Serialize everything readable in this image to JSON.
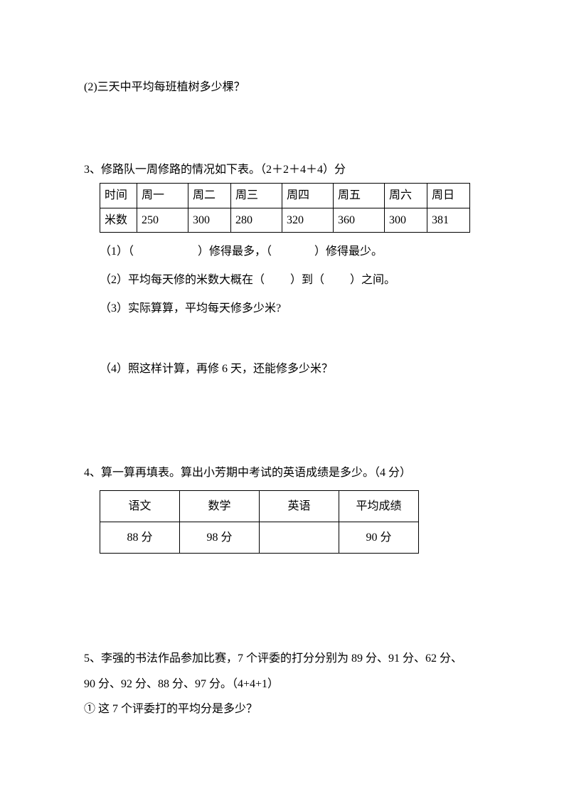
{
  "q2": {
    "text": "(2)三天中平均每班植树多少棵？"
  },
  "q3": {
    "title": "3、修路队一周修路的情况如下表。（2＋2＋4＋4）分",
    "table": {
      "row1": [
        "时间",
        "周一",
        "周二",
        "周三",
        "周四",
        "周五",
        "周六",
        "周日"
      ],
      "row2": [
        "米数",
        "250",
        "300",
        "280",
        "320",
        "360",
        "300",
        "381"
      ]
    },
    "sub1a": "（1）（",
    "sub1b": "）修得最多，（",
    "sub1c": "）修得最少。",
    "sub2a": "（2）平均每天修的米数大概在（",
    "sub2b": "）到（",
    "sub2c": "）之间。",
    "sub3": "（3）实际算算，平均每天修多少米?",
    "sub4": "（4）照这样计算，再修 6 天，还能修多少米？"
  },
  "q4": {
    "title": "4、算一算再填表。算出小芳期中考试的英语成绩是多少。（4 分）",
    "table": {
      "headers": [
        "语文",
        "数学",
        "英语",
        "平均成绩"
      ],
      "values": [
        "88 分",
        "98 分",
        "",
        "90 分"
      ]
    }
  },
  "q5": {
    "line1": "5、李强的书法作品参加比赛，7 个评委的打分分别为 89 分、91 分、62 分、",
    "line2": "90 分、92 分、88 分、97 分。（4+4+1）",
    "sub1": "① 这 7 个评委打的平均分是多少？"
  }
}
